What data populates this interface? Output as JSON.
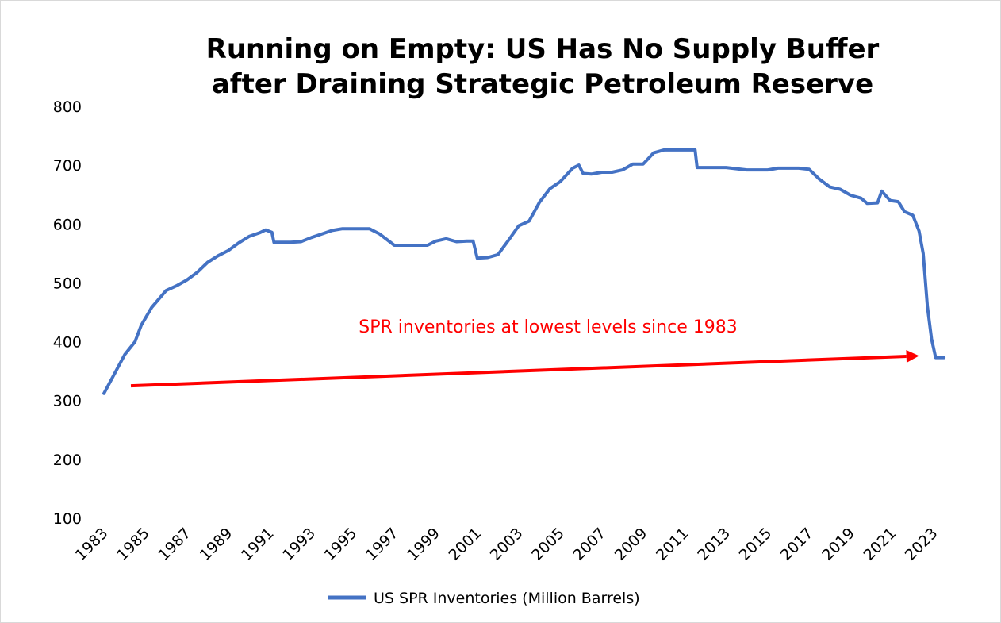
{
  "chart_data": {
    "type": "line",
    "title_lines": [
      "Running on Empty: US Has No Supply Buffer",
      "after Draining Strategic Petroleum Reserve"
    ],
    "xlabel": "",
    "ylabel": "",
    "xlim": [
      1983,
      2023
    ],
    "ylim": [
      100,
      800
    ],
    "x_ticks": [
      "1983",
      "1985",
      "1987",
      "1989",
      "1991",
      "1993",
      "1995",
      "1997",
      "1999",
      "2001",
      "2003",
      "2005",
      "2007",
      "2009",
      "2011",
      "2013",
      "2015",
      "2017",
      "2019",
      "2021",
      "2023"
    ],
    "y_ticks": [
      "100",
      "200",
      "300",
      "400",
      "500",
      "600",
      "700",
      "800"
    ],
    "grid": false,
    "legend_position": "bottom",
    "series": [
      {
        "name": "US SPR Inventories (Million Barrels)",
        "color": "#4472c4",
        "points": [
          [
            1983.0,
            312
          ],
          [
            1983.5,
            345
          ],
          [
            1984.0,
            378
          ],
          [
            1984.5,
            400
          ],
          [
            1984.8,
            428
          ],
          [
            1985.3,
            458
          ],
          [
            1986.0,
            487
          ],
          [
            1986.5,
            495
          ],
          [
            1987.0,
            505
          ],
          [
            1987.5,
            518
          ],
          [
            1988.0,
            535
          ],
          [
            1988.5,
            546
          ],
          [
            1989.0,
            555
          ],
          [
            1989.5,
            568
          ],
          [
            1990.0,
            579
          ],
          [
            1990.5,
            585
          ],
          [
            1990.8,
            590
          ],
          [
            1991.1,
            586
          ],
          [
            1991.2,
            569
          ],
          [
            1992.0,
            569
          ],
          [
            1992.5,
            570
          ],
          [
            1993.0,
            577
          ],
          [
            1993.5,
            583
          ],
          [
            1994.0,
            589
          ],
          [
            1994.5,
            592
          ],
          [
            1995.0,
            592
          ],
          [
            1995.8,
            592
          ],
          [
            1996.3,
            583
          ],
          [
            1996.7,
            572
          ],
          [
            1997.0,
            564
          ],
          [
            1998.0,
            564
          ],
          [
            1998.6,
            564
          ],
          [
            1999.0,
            571
          ],
          [
            1999.5,
            575
          ],
          [
            2000.0,
            570
          ],
          [
            2000.5,
            571
          ],
          [
            2000.8,
            571
          ],
          [
            2001.0,
            542
          ],
          [
            2001.5,
            543
          ],
          [
            2002.0,
            548
          ],
          [
            2002.5,
            572
          ],
          [
            2003.0,
            597
          ],
          [
            2003.5,
            605
          ],
          [
            2004.0,
            637
          ],
          [
            2004.5,
            660
          ],
          [
            2005.0,
            672
          ],
          [
            2005.6,
            695
          ],
          [
            2005.9,
            700
          ],
          [
            2006.1,
            686
          ],
          [
            2006.5,
            685
          ],
          [
            2007.0,
            688
          ],
          [
            2007.5,
            688
          ],
          [
            2008.0,
            692
          ],
          [
            2008.5,
            702
          ],
          [
            2009.0,
            702
          ],
          [
            2009.5,
            721
          ],
          [
            2010.0,
            726
          ],
          [
            2011.0,
            726
          ],
          [
            2011.5,
            726
          ],
          [
            2011.6,
            696
          ],
          [
            2012.5,
            696
          ],
          [
            2013.0,
            696
          ],
          [
            2014.0,
            692
          ],
          [
            2015.0,
            692
          ],
          [
            2015.5,
            695
          ],
          [
            2016.5,
            695
          ],
          [
            2017.0,
            693
          ],
          [
            2017.5,
            676
          ],
          [
            2018.0,
            663
          ],
          [
            2018.5,
            659
          ],
          [
            2019.0,
            649
          ],
          [
            2019.5,
            644
          ],
          [
            2019.8,
            635
          ],
          [
            2020.3,
            636
          ],
          [
            2020.5,
            656
          ],
          [
            2020.9,
            640
          ],
          [
            2021.3,
            638
          ],
          [
            2021.6,
            621
          ],
          [
            2022.0,
            615
          ],
          [
            2022.3,
            588
          ],
          [
            2022.5,
            550
          ],
          [
            2022.7,
            460
          ],
          [
            2022.9,
            405
          ],
          [
            2023.1,
            373
          ],
          [
            2023.5,
            373
          ]
        ]
      }
    ],
    "annotations": [
      {
        "text": "SPR inventories at lowest levels since 1983",
        "color": "#ff0000"
      }
    ],
    "arrow": {
      "color": "#ff0000",
      "from": [
        1984.3,
        325
      ],
      "to": [
        2022.3,
        376
      ]
    }
  }
}
